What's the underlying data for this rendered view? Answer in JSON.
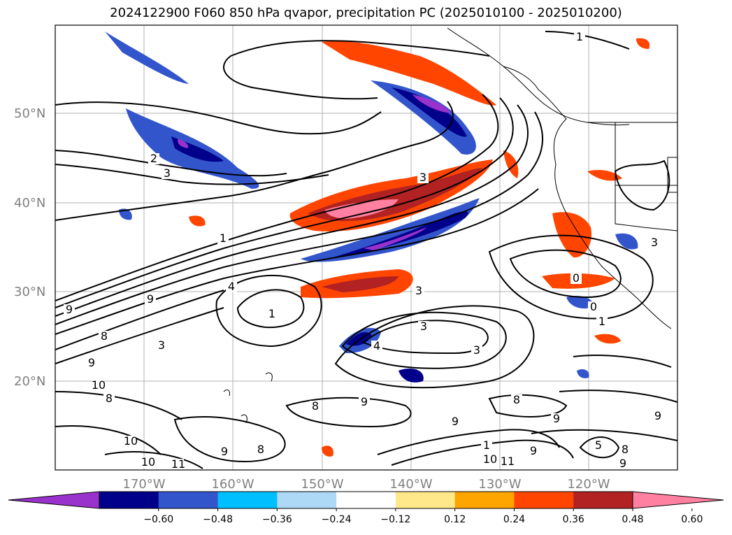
{
  "title": "2024122900 F060 850 hPa qvapor, precipitation PC (2025010100 - 2025010200)",
  "map": {
    "lat_labels": [
      "50°N",
      "40°N",
      "30°N",
      "20°N"
    ],
    "lon_labels": [
      "170°W",
      "160°W",
      "150°W",
      "140°W",
      "130°W",
      "120°W"
    ],
    "contour_labels": [
      "1",
      "2",
      "3",
      "3",
      "1",
      "4",
      "1",
      "9",
      "9",
      "8",
      "9",
      "10",
      "8",
      "10",
      "10",
      "11",
      "9",
      "8",
      "3",
      "3",
      "3",
      "4",
      "3",
      "9",
      "9",
      "8",
      "8",
      "9",
      "1",
      "10",
      "11",
      "9",
      "8",
      "5",
      "9",
      "9",
      "0",
      "0",
      "1",
      "3"
    ]
  },
  "colorbar": {
    "tick_labels": [
      "−0.60",
      "−0.48",
      "−0.36",
      "−0.24",
      "−0.12",
      "0.12",
      "0.24",
      "0.36",
      "0.48",
      "0.60"
    ],
    "colors": [
      "#9932CC",
      "#00008B",
      "#3355CC",
      "#00BFFF",
      "#ADD8F6",
      "#FFFFFF",
      "#FFE88A",
      "#FFA500",
      "#FF4500",
      "#B22222",
      "#FF80A0"
    ]
  }
}
